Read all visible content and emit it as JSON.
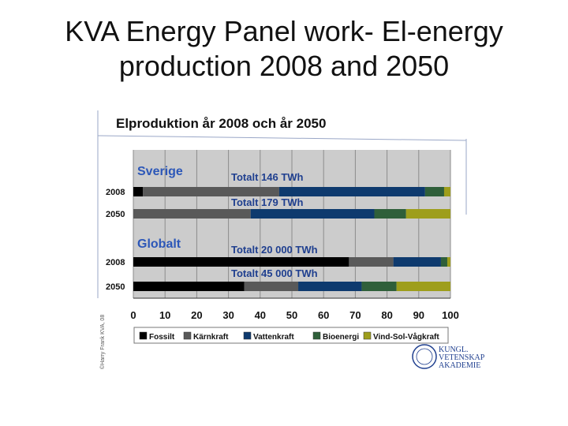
{
  "slide": {
    "title_line1": "KVA Energy Panel work- El-energy",
    "title_line2": "production 2008 and 2050"
  },
  "chart_data": {
    "type": "bar",
    "stacked": true,
    "orientation": "horizontal",
    "title": "Elproduktion år 2008 och år 2050",
    "xlim": [
      0,
      100
    ],
    "x_ticks": [
      "0",
      "10",
      "20",
      "30",
      "40",
      "50",
      "60",
      "70",
      "80",
      "90",
      "100"
    ],
    "grid": true,
    "legend_position": "bottom",
    "groups": [
      {
        "label": "Sverige",
        "rows": [
          {
            "year": "2008",
            "total": "Totalt  146 TWh",
            "values": [
              3,
              43,
              46,
              6,
              2
            ]
          },
          {
            "year": "2050",
            "total": "Totalt  179 TWh",
            "values": [
              0,
              37,
              39,
              10,
              14
            ]
          }
        ]
      },
      {
        "label": "Globalt",
        "rows": [
          {
            "year": "2008",
            "total": "Totalt 20 000 TWh",
            "values": [
              68,
              14,
              15,
              2,
              1
            ]
          },
          {
            "year": "2050",
            "total": "Totalt 45 000 TWh",
            "values": [
              35,
              17,
              20,
              11,
              17
            ]
          }
        ]
      }
    ],
    "series": [
      {
        "name": "Fossilt",
        "color": "#000000"
      },
      {
        "name": "Kärnkraft",
        "color": "#595959"
      },
      {
        "name": "Vattenkraft",
        "color": "#0e3a6e"
      },
      {
        "name": "Bioenergi",
        "color": "#2f5f3a"
      },
      {
        "name": "Vind-Sol-Vågkraft",
        "color": "#9e9e1c"
      }
    ],
    "side_note": "©Harry Frank KVA, 08",
    "logo_text": [
      "KUNGL.",
      "VETENSKAP",
      "AKADEMIE"
    ]
  }
}
